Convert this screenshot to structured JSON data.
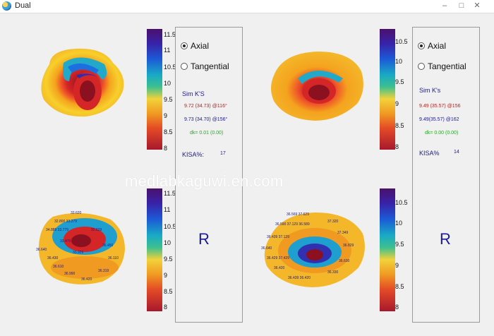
{
  "window": {
    "title": "Dual",
    "minimize": "–",
    "maximize": "□",
    "close": "✕"
  },
  "left": {
    "axial_label": "Axial",
    "tangential_label": "Tangential",
    "selected": "Axial",
    "simk_title": "Sim K'S",
    "simk_line1": "9.72 (34.73) @116°",
    "simk_line2": "9.73 (34.70) @156°",
    "dk_line": "dk= 0.01 (0.00)",
    "kisa_label": "KISA%:",
    "kisa_value": "17",
    "eye": "R",
    "scale_top": [
      "11.5",
      "11",
      "10.5",
      "10",
      "9.5",
      "9",
      "8.5",
      "8"
    ],
    "scale_bottom": [
      "11.5",
      "11",
      "10.5",
      "10",
      "9.5",
      "9",
      "8.5",
      "8"
    ]
  },
  "right": {
    "axial_label": "Axial",
    "tangential_label": "Tangential",
    "selected": "Axial",
    "simk_title": "Sim K's",
    "simk_line1": "9.49 (35.57) @156",
    "simk_line2": "9.49(35.57) @162",
    "dk_line": "dk= 0.00 (0.00)",
    "kisa_label": "KISA%",
    "kisa_value": "14",
    "eye": "R",
    "scale_top": [
      "10.5",
      "10",
      "9.5",
      "9",
      "8.5",
      "8"
    ],
    "scale_bottom": [
      "10.5",
      "10",
      "9.5",
      "9",
      "8.5",
      "8"
    ]
  },
  "watermark": "medlabkaguwi.en.com",
  "colors": {
    "selected_blue": "#1a1a8c",
    "red_value": "#b22222",
    "green_value": "#22aa22"
  }
}
